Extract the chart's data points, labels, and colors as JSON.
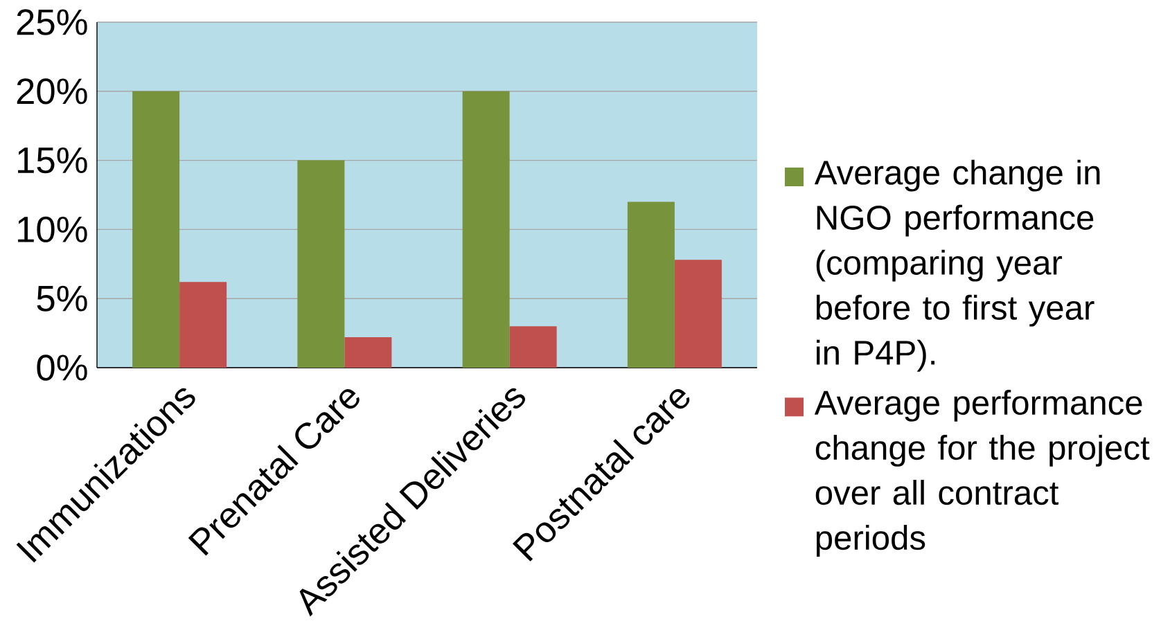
{
  "chart_data": {
    "type": "bar",
    "categories": [
      "Immunizations",
      "Prenatal Care",
      "Assisted Deliveries",
      "Postnatal care"
    ],
    "series": [
      {
        "name": "Average change in NGO performance (comparing year before to first year in P4P).",
        "color": "#77933c",
        "values": [
          20,
          15,
          20,
          12
        ]
      },
      {
        "name": "Average performance change for the project over all contract periods",
        "color": "#c0504d",
        "values": [
          6.2,
          2.2,
          3.0,
          7.8
        ]
      }
    ],
    "ylim": [
      0,
      25
    ],
    "yticks": [
      {
        "value": 0,
        "label": "0%"
      },
      {
        "value": 5,
        "label": "5%"
      },
      {
        "value": 10,
        "label": "10%"
      },
      {
        "value": 15,
        "label": "15%"
      },
      {
        "value": 20,
        "label": "20%"
      },
      {
        "value": 25,
        "label": "25%"
      }
    ],
    "grid": "y",
    "legend": "right"
  }
}
